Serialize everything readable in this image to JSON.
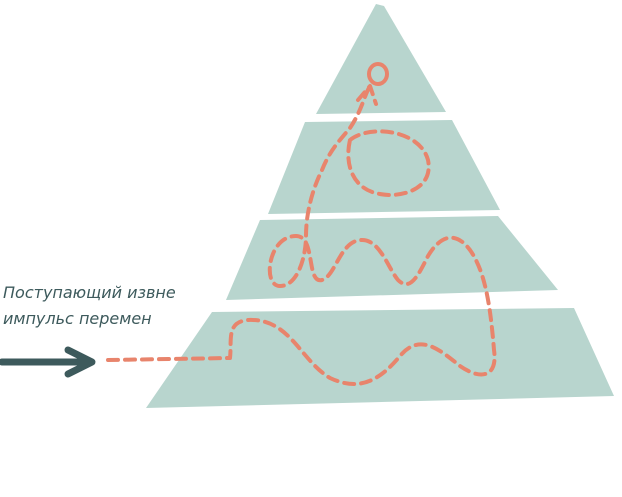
{
  "label": {
    "lines": [
      "Поступающий извне",
      "импульс перемен"
    ]
  }
}
